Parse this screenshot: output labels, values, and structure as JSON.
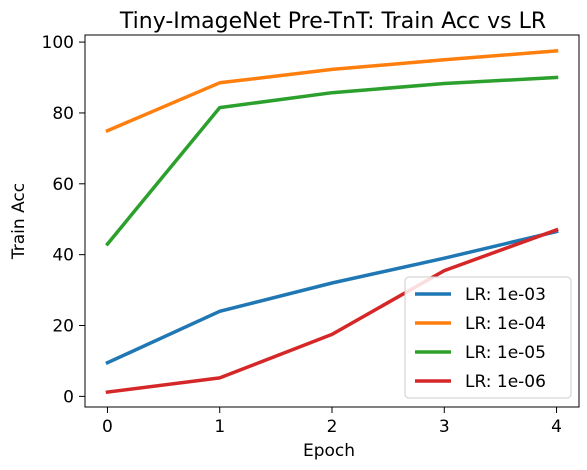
{
  "chart_data": {
    "type": "line",
    "title": "Tiny-ImageNet Pre-TnT: Train Acc vs LR",
    "xlabel": "Epoch",
    "ylabel": "Train Acc",
    "x": [
      0,
      1,
      2,
      3,
      4
    ],
    "xticks": [
      "0",
      "1",
      "2",
      "3",
      "4"
    ],
    "yticks": [
      "0",
      "20",
      "40",
      "60",
      "80",
      "100"
    ],
    "xlim": [
      -0.2,
      4.2
    ],
    "ylim": [
      -3,
      102
    ],
    "grid": false,
    "legend_position": "lower-right",
    "series": [
      {
        "name": "LR: 1e-03",
        "color": "#1f77b4",
        "values": [
          9.5,
          24.0,
          32.0,
          39.0,
          46.5
        ]
      },
      {
        "name": "LR: 1e-04",
        "color": "#ff7f0e",
        "values": [
          75.0,
          88.5,
          92.3,
          95.0,
          97.5
        ]
      },
      {
        "name": "LR: 1e-05",
        "color": "#2ca02c",
        "values": [
          43.0,
          81.5,
          85.7,
          88.3,
          90.0
        ]
      },
      {
        "name": "LR: 1e-06",
        "color": "#d62728",
        "values": [
          1.2,
          5.2,
          17.5,
          35.5,
          47.0
        ]
      }
    ]
  }
}
